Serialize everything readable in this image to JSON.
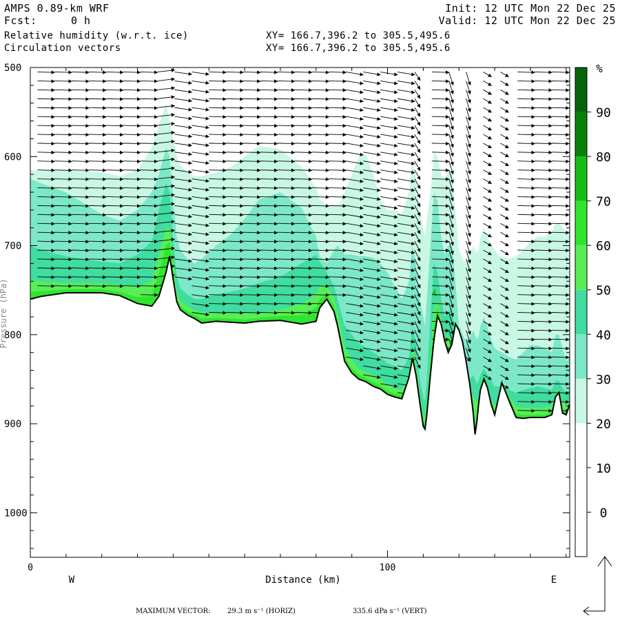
{
  "header": {
    "title": "AMPS 0.89-km WRF",
    "fcst_label": "Fcst:",
    "fcst_value": "0 h",
    "field1": "Relative humidity (w.r.t. ice)",
    "field2": "Circulation vectors",
    "init": "Init: 12 UTC Mon 22 Dec 25",
    "valid": "Valid: 12 UTC Mon 22 Dec 25",
    "xy1": "XY= 166.7,396.2 to 305.5,495.6",
    "xy2": "XY= 166.7,396.2 to 305.5,495.6"
  },
  "footer": {
    "max_label": "MAXIMUM VECTOR:",
    "horiz": "29.3 m s⁻¹ (HORIZ)",
    "vert": "335.6 dPa s⁻¹ (VERT)"
  },
  "chart_data": {
    "type": "area",
    "title": "Relative humidity (w.r.t. ice)",
    "xlabel": "Distance (km)",
    "ylabel": "Pressure (hPa)",
    "x_ticks": [
      "0",
      "100"
    ],
    "x_end_labels": [
      "W",
      "E"
    ],
    "y_ticks": [
      "500",
      "600",
      "700",
      "800",
      "900",
      "1000"
    ],
    "xlim": [
      0,
      151
    ],
    "ylim": [
      500,
      1050
    ],
    "y_axis_inverted": true,
    "colorbar": {
      "unit": "%",
      "levels": [
        0,
        10,
        20,
        30,
        40,
        50,
        60,
        70,
        80,
        90
      ],
      "colors": [
        "#ffffff",
        "#ffffff",
        "#ffffff",
        "#c8f8e4",
        "#7ce8c8",
        "#40dca0",
        "#58ee58",
        "#2ee62e",
        "#14be14",
        "#0a820a"
      ]
    },
    "terrain": {
      "x": [
        0,
        3,
        10,
        20,
        25,
        30,
        34,
        36,
        38,
        39,
        40,
        41,
        42,
        44,
        46,
        48,
        52,
        56,
        60,
        64,
        70,
        76,
        80,
        81,
        83,
        85,
        86,
        87,
        88,
        90,
        92,
        94,
        96,
        98,
        100,
        102,
        104,
        106,
        107,
        108,
        109,
        110,
        110.5,
        111,
        112,
        113,
        114,
        115,
        116,
        117,
        118,
        119,
        120,
        121,
        122,
        123,
        124,
        124.5,
        125,
        125.5,
        126,
        127,
        128,
        129,
        130,
        131,
        132,
        134,
        136,
        138,
        140,
        142,
        144,
        146,
        147,
        148,
        149,
        150,
        151
      ],
      "pressure": [
        760,
        757,
        753,
        753,
        756,
        765,
        768,
        757,
        730,
        712,
        738,
        763,
        772,
        778,
        782,
        787,
        785,
        786,
        787,
        785,
        784,
        788,
        785,
        770,
        760,
        774,
        790,
        810,
        830,
        843,
        850,
        853,
        858,
        861,
        867,
        870,
        872,
        848,
        826,
        846,
        875,
        903,
        906,
        890,
        845,
        806,
        779,
        788,
        807,
        820,
        811,
        788,
        795,
        808,
        830,
        855,
        888,
        912,
        898,
        878,
        862,
        850,
        860,
        878,
        890,
        872,
        854,
        874,
        893,
        894,
        893,
        893,
        893,
        890,
        870,
        865,
        888,
        890,
        878
      ]
    },
    "rh_bands": [
      {
        "label": "30",
        "top_pressure": [
          615,
          616,
          615,
          618,
          622,
          615,
          590,
          565,
          540,
          560,
          580,
          600,
          610,
          618,
          622,
          622,
          618,
          612,
          600,
          588,
          592,
          612,
          635,
          648,
          655,
          655,
          655,
          650,
          640,
          620,
          600,
          598,
          620,
          648,
          660,
          660,
          665,
          640,
          605,
          625,
          660,
          680,
          690,
          670,
          640,
          595,
          600,
          620,
          625,
          615,
          620,
          660,
          705,
          715,
          720,
          710,
          700,
          705,
          708,
          705,
          690,
          680,
          690,
          700,
          705,
          710,
          712,
          715,
          712,
          705,
          695,
          690,
          690,
          685,
          675,
          675,
          680,
          685,
          680
        ]
      },
      {
        "label": "40",
        "top_pressure": [
          625,
          630,
          640,
          665,
          672,
          660,
          640,
          620,
          590,
          600,
          650,
          690,
          705,
          715,
          720,
          715,
          700,
          688,
          670,
          648,
          640,
          658,
          690,
          712,
          720,
          705,
          700,
          705,
          710,
          710,
          712,
          712,
          714,
          720,
          730,
          745,
          760,
          740,
          700,
          720,
          760,
          780,
          790,
          760,
          700,
          640,
          650,
          690,
          710,
          700,
          700,
          740,
          790,
          800,
          808,
          803,
          795,
          800,
          805,
          802,
          790,
          780,
          792,
          805,
          815,
          818,
          820,
          825,
          828,
          820,
          812,
          812,
          815,
          820,
          800,
          800,
          815,
          830,
          825
        ]
      },
      {
        "label": "50",
        "top_pressure": [
          700,
          705,
          712,
          718,
          720,
          710,
          695,
          660,
          630,
          640,
          695,
          735,
          748,
          755,
          760,
          760,
          755,
          752,
          748,
          742,
          735,
          720,
          710,
          718,
          730,
          745,
          760,
          775,
          790,
          800,
          810,
          815,
          820,
          825,
          832,
          835,
          840,
          825,
          790,
          810,
          850,
          870,
          875,
          850,
          780,
          720,
          730,
          760,
          780,
          775,
          770,
          800,
          835,
          845,
          852,
          850,
          845,
          850,
          855,
          852,
          845,
          838,
          845,
          852,
          858,
          858,
          858,
          862,
          865,
          862,
          860,
          858,
          860,
          862,
          852,
          852,
          860,
          866,
          860
        ]
      },
      {
        "label": "60",
        "top_pressure": [
          738,
          740,
          742,
          742,
          744,
          745,
          740,
          710,
          680,
          680,
          715,
          752,
          762,
          768,
          772,
          775,
          775,
          776,
          776,
          775,
          772,
          765,
          755,
          745,
          745,
          758,
          775,
          795,
          815,
          828,
          838,
          842,
          846,
          850,
          856,
          860,
          862,
          845,
          815,
          835,
          868,
          890,
          894,
          875,
          825,
          770,
          760,
          782,
          800,
          805,
          800,
          825,
          855,
          865,
          872,
          870,
          868,
          872,
          875,
          872,
          866,
          860,
          866,
          874,
          880,
          870,
          860,
          870,
          880,
          882,
          882,
          882,
          882,
          880,
          866,
          862,
          876,
          880,
          870
        ]
      },
      {
        "label": "70",
        "top_pressure": [
          752,
          751,
          749,
          749,
          752,
          758,
          756,
          730,
          700,
          696,
          728,
          760,
          768,
          774,
          778,
          782,
          781,
          782,
          783,
          781,
          779,
          778,
          770,
          760,
          755,
          768,
          785,
          805,
          825,
          838,
          845,
          849,
          853,
          857,
          863,
          866,
          868,
          846,
          822,
          842,
          872,
          898,
          901,
          882,
          835,
          790,
          770,
          785,
          805,
          815,
          806,
          785,
          792,
          806,
          826,
          850,
          882,
          905,
          892,
          874,
          858,
          846,
          856,
          874,
          886,
          870,
          852,
          870,
          889,
          890,
          890,
          890,
          890,
          887,
          868,
          863,
          885,
          887,
          875
        ]
      }
    ],
    "annotations": [
      "Circulation vectors"
    ]
  }
}
